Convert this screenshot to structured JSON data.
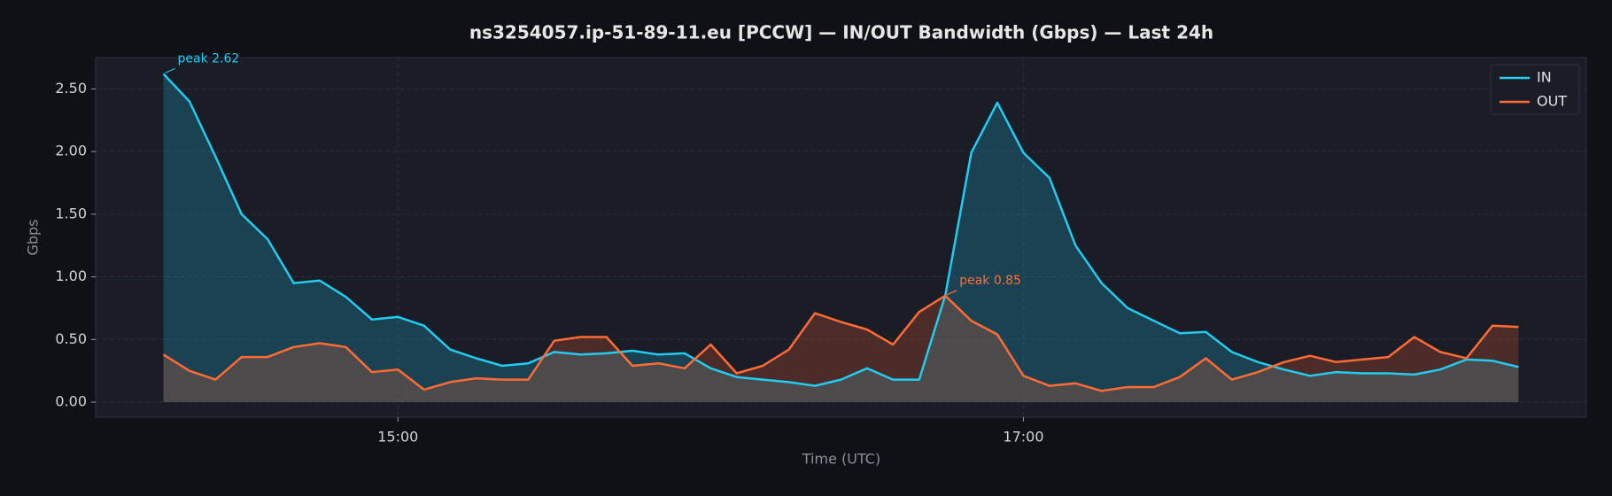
{
  "chart_data": {
    "type": "area_line",
    "title": "ns3254057.ip-51-89-11.eu [PCCW] — IN/OUT Bandwidth (Gbps) — Last 24h",
    "xlabel": "Time (UTC)",
    "ylabel": "Gbps",
    "x": [
      "14:15",
      "14:20",
      "14:25",
      "14:30",
      "14:35",
      "14:40",
      "14:45",
      "14:50",
      "14:55",
      "15:00",
      "15:05",
      "15:10",
      "15:15",
      "15:20",
      "15:25",
      "15:30",
      "15:35",
      "15:40",
      "15:45",
      "15:50",
      "15:55",
      "16:00",
      "16:05",
      "16:10",
      "16:15",
      "16:20",
      "16:25",
      "16:30",
      "16:35",
      "16:40",
      "16:45",
      "16:50",
      "16:55",
      "17:00",
      "17:05",
      "17:10",
      "17:15",
      "17:20",
      "17:25",
      "17:30",
      "17:35",
      "17:40",
      "17:45",
      "17:50",
      "17:55",
      "18:00",
      "18:05",
      "18:10",
      "18:15",
      "18:20",
      "18:25",
      "18:30",
      "18:35"
    ],
    "series": [
      {
        "name": "IN",
        "color": "#22cbf0",
        "annotation": "peak 2.62",
        "values": [
          2.62,
          2.4,
          1.96,
          1.5,
          1.3,
          0.95,
          0.97,
          0.84,
          0.66,
          0.68,
          0.61,
          0.42,
          0.35,
          0.29,
          0.31,
          0.4,
          0.38,
          0.39,
          0.41,
          0.38,
          0.39,
          0.27,
          0.2,
          0.18,
          0.16,
          0.13,
          0.18,
          0.27,
          0.18,
          0.18,
          0.85,
          1.99,
          2.39,
          1.99,
          1.79,
          1.25,
          0.95,
          0.75,
          0.65,
          0.55,
          0.56,
          0.4,
          0.32,
          0.26,
          0.21,
          0.24,
          0.23,
          0.23,
          0.22,
          0.26,
          0.34,
          0.33,
          0.28
        ]
      },
      {
        "name": "OUT",
        "color": "#ff6b35",
        "annotation": "peak 0.85",
        "values": [
          0.38,
          0.25,
          0.18,
          0.36,
          0.36,
          0.44,
          0.47,
          0.44,
          0.24,
          0.26,
          0.1,
          0.16,
          0.19,
          0.18,
          0.18,
          0.49,
          0.52,
          0.52,
          0.29,
          0.31,
          0.27,
          0.46,
          0.23,
          0.29,
          0.42,
          0.71,
          0.64,
          0.58,
          0.46,
          0.72,
          0.85,
          0.65,
          0.54,
          0.21,
          0.13,
          0.15,
          0.09,
          0.12,
          0.12,
          0.2,
          0.35,
          0.18,
          0.24,
          0.32,
          0.37,
          0.32,
          0.34,
          0.36,
          0.52,
          0.4,
          0.35,
          0.61,
          0.6
        ]
      }
    ],
    "xlim": [
      "14:02",
      "18:48"
    ],
    "xticks": [
      "15:00",
      "17:00"
    ],
    "ylim": [
      -0.12,
      2.75
    ],
    "yticks": [
      {
        "value": 0,
        "label": "0.00"
      },
      {
        "value": 0.5,
        "label": "0.50"
      },
      {
        "value": 1,
        "label": "1.00"
      },
      {
        "value": 1.5,
        "label": "1.50"
      },
      {
        "value": 2,
        "label": "2.00"
      },
      {
        "value": 2.5,
        "label": "2.50"
      }
    ],
    "grid": true,
    "legend": "upper right"
  }
}
